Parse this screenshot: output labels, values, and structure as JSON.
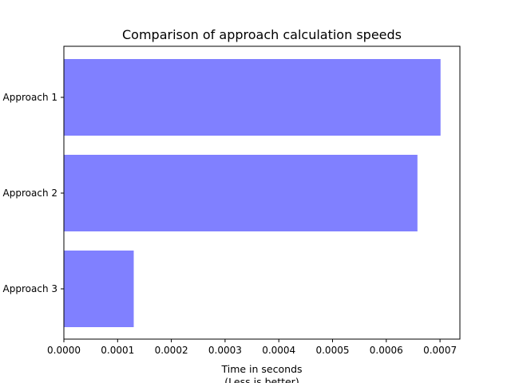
{
  "chart_data": {
    "type": "bar",
    "orientation": "horizontal",
    "title": "Comparison of approach calculation speeds",
    "xlabel_lines": [
      "Time in seconds",
      "(Less is better)"
    ],
    "ylabel": "",
    "categories": [
      "Approach 1",
      "Approach 2",
      "Approach 3"
    ],
    "values": [
      0.000701,
      0.000658,
      0.00013
    ],
    "xlim": [
      0,
      0.000737
    ],
    "x_ticks": [
      0,
      0.0001,
      0.0002,
      0.0003,
      0.0004,
      0.0005,
      0.0006,
      0.0007
    ],
    "x_tick_labels": [
      "0.0000",
      "0.0001",
      "0.0002",
      "0.0003",
      "0.0004",
      "0.0005",
      "0.0006",
      "0.0007"
    ],
    "bar_color": "#8080ff",
    "grid": false,
    "legend": "none"
  }
}
